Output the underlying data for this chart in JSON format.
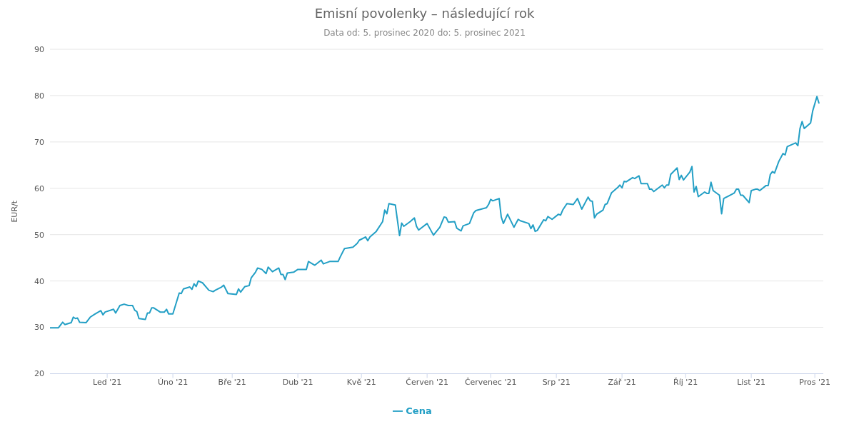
{
  "chart_data": {
    "type": "line",
    "title": "Emisní povolenky – následující rok",
    "subtitle": "Data od: 5. prosinec 2020 do: 5. prosinec 2021",
    "ylabel": "EUR/t",
    "x": [
      "2020-12-05",
      "2020-12-09",
      "2020-12-11",
      "2020-12-12",
      "2020-12-15",
      "2020-12-16",
      "2020-12-17",
      "2020-12-18",
      "2020-12-19",
      "2020-12-22",
      "2020-12-24",
      "2020-12-26",
      "2020-12-29",
      "2020-12-30",
      "2020-12-31",
      "2021-01-04",
      "2021-01-05",
      "2021-01-07",
      "2021-01-09",
      "2021-01-11",
      "2021-01-13",
      "2021-01-14",
      "2021-01-15",
      "2021-01-16",
      "2021-01-19",
      "2021-01-20",
      "2021-01-21",
      "2021-01-22",
      "2021-01-23",
      "2021-01-26",
      "2021-01-28",
      "2021-01-29",
      "2021-01-30",
      "2021-02-01",
      "2021-02-04",
      "2021-02-05",
      "2021-02-06",
      "2021-02-09",
      "2021-02-10",
      "2021-02-11",
      "2021-02-12",
      "2021-02-13",
      "2021-02-15",
      "2021-02-18",
      "2021-02-20",
      "2021-02-21",
      "2021-02-24",
      "2021-02-25",
      "2021-02-27",
      "2021-03-03",
      "2021-03-04",
      "2021-03-05",
      "2021-03-07",
      "2021-03-09",
      "2021-03-10",
      "2021-03-12",
      "2021-03-13",
      "2021-03-15",
      "2021-03-17",
      "2021-03-18",
      "2021-03-20",
      "2021-03-23",
      "2021-03-24",
      "2021-03-25",
      "2021-03-26",
      "2021-03-27",
      "2021-03-30",
      "2021-04-01",
      "2021-04-05",
      "2021-04-06",
      "2021-04-09",
      "2021-04-12",
      "2021-04-13",
      "2021-04-16",
      "2021-04-20",
      "2021-04-21",
      "2021-04-23",
      "2021-04-27",
      "2021-04-29",
      "2021-04-30",
      "2021-05-03",
      "2021-05-04",
      "2021-05-05",
      "2021-05-08",
      "2021-05-11",
      "2021-05-12",
      "2021-05-13",
      "2021-05-14",
      "2021-05-17",
      "2021-05-19",
      "2021-05-20",
      "2021-05-21",
      "2021-05-24",
      "2021-05-26",
      "2021-05-27",
      "2021-05-28",
      "2021-06-01",
      "2021-06-04",
      "2021-06-07",
      "2021-06-09",
      "2021-06-10",
      "2021-06-11",
      "2021-06-14",
      "2021-06-15",
      "2021-06-17",
      "2021-06-18",
      "2021-06-21",
      "2021-06-23",
      "2021-06-24",
      "2021-06-29",
      "2021-06-30",
      "2021-07-01",
      "2021-07-02",
      "2021-07-05",
      "2021-07-06",
      "2021-07-07",
      "2021-07-09",
      "2021-07-12",
      "2021-07-14",
      "2021-07-15",
      "2021-07-19",
      "2021-07-20",
      "2021-07-21",
      "2021-07-22",
      "2021-07-23",
      "2021-07-26",
      "2021-07-27",
      "2021-07-28",
      "2021-07-30",
      "2021-08-02",
      "2021-08-03",
      "2021-08-04",
      "2021-08-06",
      "2021-08-09",
      "2021-08-11",
      "2021-08-13",
      "2021-08-16",
      "2021-08-17",
      "2021-08-18",
      "2021-08-19",
      "2021-08-20",
      "2021-08-23",
      "2021-08-24",
      "2021-08-25",
      "2021-08-27",
      "2021-08-30",
      "2021-08-31",
      "2021-09-01",
      "2021-09-02",
      "2021-09-03",
      "2021-09-06",
      "2021-09-07",
      "2021-09-09",
      "2021-09-10",
      "2021-09-13",
      "2021-09-14",
      "2021-09-15",
      "2021-09-16",
      "2021-09-20",
      "2021-09-21",
      "2021-09-22",
      "2021-09-23",
      "2021-09-24",
      "2021-09-27",
      "2021-09-28",
      "2021-09-29",
      "2021-09-30",
      "2021-10-03",
      "2021-10-04",
      "2021-10-05",
      "2021-10-06",
      "2021-10-07",
      "2021-10-10",
      "2021-10-11",
      "2021-10-12",
      "2021-10-13",
      "2021-10-14",
      "2021-10-17",
      "2021-10-18",
      "2021-10-19",
      "2021-10-24",
      "2021-10-25",
      "2021-10-26",
      "2021-10-27",
      "2021-10-28",
      "2021-10-31",
      "2021-11-01",
      "2021-11-03",
      "2021-11-04",
      "2021-11-05",
      "2021-11-08",
      "2021-11-09",
      "2021-11-10",
      "2021-11-11",
      "2021-11-12",
      "2021-11-14",
      "2021-11-16",
      "2021-11-17",
      "2021-11-18",
      "2021-11-22",
      "2021-11-23",
      "2021-11-24",
      "2021-11-25",
      "2021-11-26",
      "2021-11-29",
      "2021-11-30",
      "2021-12-02",
      "2021-12-03"
    ],
    "series": [
      {
        "name": "Cena",
        "color": "#239fc5",
        "values": [
          29.9,
          29.9,
          31.1,
          30.6,
          31.0,
          32.2,
          31.9,
          32.0,
          31.1,
          31.0,
          32.2,
          32.8,
          33.6,
          32.7,
          33.3,
          33.9,
          33.1,
          34.7,
          35.0,
          34.7,
          34.7,
          33.7,
          33.4,
          31.9,
          31.7,
          33.1,
          33.1,
          34.2,
          34.2,
          33.3,
          33.3,
          33.9,
          32.9,
          32.9,
          37.4,
          37.3,
          38.3,
          38.7,
          38.2,
          39.4,
          38.8,
          40.0,
          39.6,
          38.0,
          37.7,
          38.0,
          38.7,
          39.1,
          37.3,
          37.1,
          38.3,
          37.6,
          38.8,
          39.0,
          40.7,
          41.9,
          42.8,
          42.5,
          41.6,
          43.0,
          42.0,
          42.8,
          41.4,
          41.4,
          40.3,
          41.7,
          41.9,
          42.5,
          42.5,
          44.2,
          43.4,
          44.5,
          43.7,
          44.2,
          44.2,
          45.2,
          47.0,
          47.3,
          48.1,
          48.8,
          49.5,
          48.7,
          49.5,
          50.7,
          52.8,
          55.3,
          54.5,
          56.7,
          56.4,
          49.8,
          52.5,
          51.8,
          52.8,
          53.6,
          51.8,
          51.0,
          52.4,
          49.9,
          51.6,
          53.8,
          53.7,
          52.7,
          52.8,
          51.4,
          50.8,
          51.9,
          52.4,
          54.7,
          55.2,
          55.8,
          56.5,
          57.6,
          57.3,
          57.8,
          53.8,
          52.4,
          54.4,
          51.6,
          53.3,
          53.0,
          52.4,
          51.3,
          52.1,
          50.7,
          50.9,
          53.2,
          53.0,
          53.9,
          53.3,
          54.4,
          54.2,
          55.3,
          56.7,
          56.5,
          57.8,
          55.5,
          58.1,
          57.3,
          57.2,
          53.6,
          54.4,
          55.3,
          56.5,
          56.7,
          59.0,
          60.2,
          60.7,
          60.1,
          61.5,
          61.4,
          62.3,
          62.1,
          62.7,
          61.0,
          61.0,
          59.8,
          59.8,
          59.3,
          60.7,
          60.1,
          60.7,
          60.7,
          63.0,
          64.4,
          61.9,
          62.8,
          61.8,
          63.5,
          64.7,
          59.2,
          60.4,
          58.2,
          59.2,
          58.9,
          58.9,
          61.3,
          59.5,
          58.5,
          54.5,
          57.8,
          59.0,
          59.8,
          59.8,
          58.5,
          58.5,
          56.9,
          59.5,
          59.8,
          59.8,
          59.5,
          60.6,
          60.6,
          63.0,
          63.6,
          63.3,
          65.8,
          67.5,
          67.2,
          69.0,
          69.8,
          69.2,
          72.9,
          74.4,
          72.9,
          74.1,
          76.7,
          79.8,
          78.3
        ]
      }
    ],
    "xlim": [
      "2020-12-05",
      "2021-12-05"
    ],
    "xticks": [
      {
        "value": "2021-01-01",
        "label": "Led '21"
      },
      {
        "value": "2021-02-01",
        "label": "Úno '21"
      },
      {
        "value": "2021-03-01",
        "label": "Bře '21"
      },
      {
        "value": "2021-04-01",
        "label": "Dub '21"
      },
      {
        "value": "2021-05-01",
        "label": "Kvě '21"
      },
      {
        "value": "2021-06-01",
        "label": "Červen '21"
      },
      {
        "value": "2021-07-01",
        "label": "Červenec '21"
      },
      {
        "value": "2021-08-01",
        "label": "Srp '21"
      },
      {
        "value": "2021-09-01",
        "label": "Zář '21"
      },
      {
        "value": "2021-10-01",
        "label": "Říj '21"
      },
      {
        "value": "2021-11-01",
        "label": "List '21"
      },
      {
        "value": "2021-12-01",
        "label": "Pros '21"
      }
    ],
    "ylim": [
      20,
      90
    ],
    "yticks": [
      20,
      30,
      40,
      50,
      60,
      70,
      80,
      90
    ],
    "grid": "y",
    "legend": "bottom",
    "marker": "none",
    "line_style": "solid"
  }
}
